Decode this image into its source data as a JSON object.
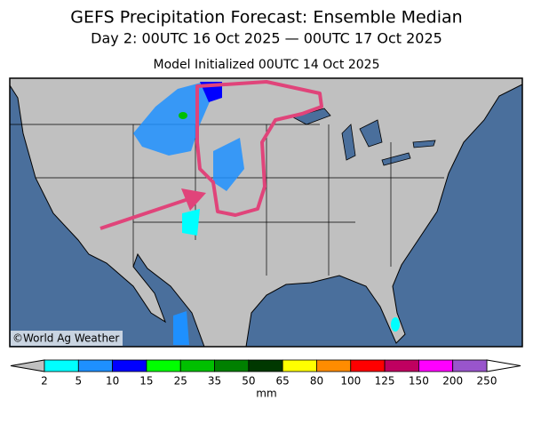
{
  "header": {
    "title": "GEFS Precipitation Forecast: Ensemble Median",
    "subtitle": "Day 2: 00UTC 16 Oct 2025 — 00UTC 17 Oct 2025",
    "init": "Model Initialized 00UTC 14 Oct 2025"
  },
  "map": {
    "credit": "©World Ag Weather"
  },
  "colorbar": {
    "labels": [
      2,
      5,
      10,
      15,
      25,
      35,
      50,
      65,
      80,
      100,
      125,
      150,
      200,
      250
    ],
    "colors": [
      "#00ffff",
      "#1e90ff",
      "#0000ff",
      "#00ff00",
      "#00c000",
      "#008000",
      "#003800",
      "#ffff00",
      "#ff8c00",
      "#ff0000",
      "#c00060",
      "#ff00ff",
      "#9955cc"
    ],
    "below_color": "#c0c0c0",
    "above_color": "#ffffff",
    "unit": "mm"
  }
}
